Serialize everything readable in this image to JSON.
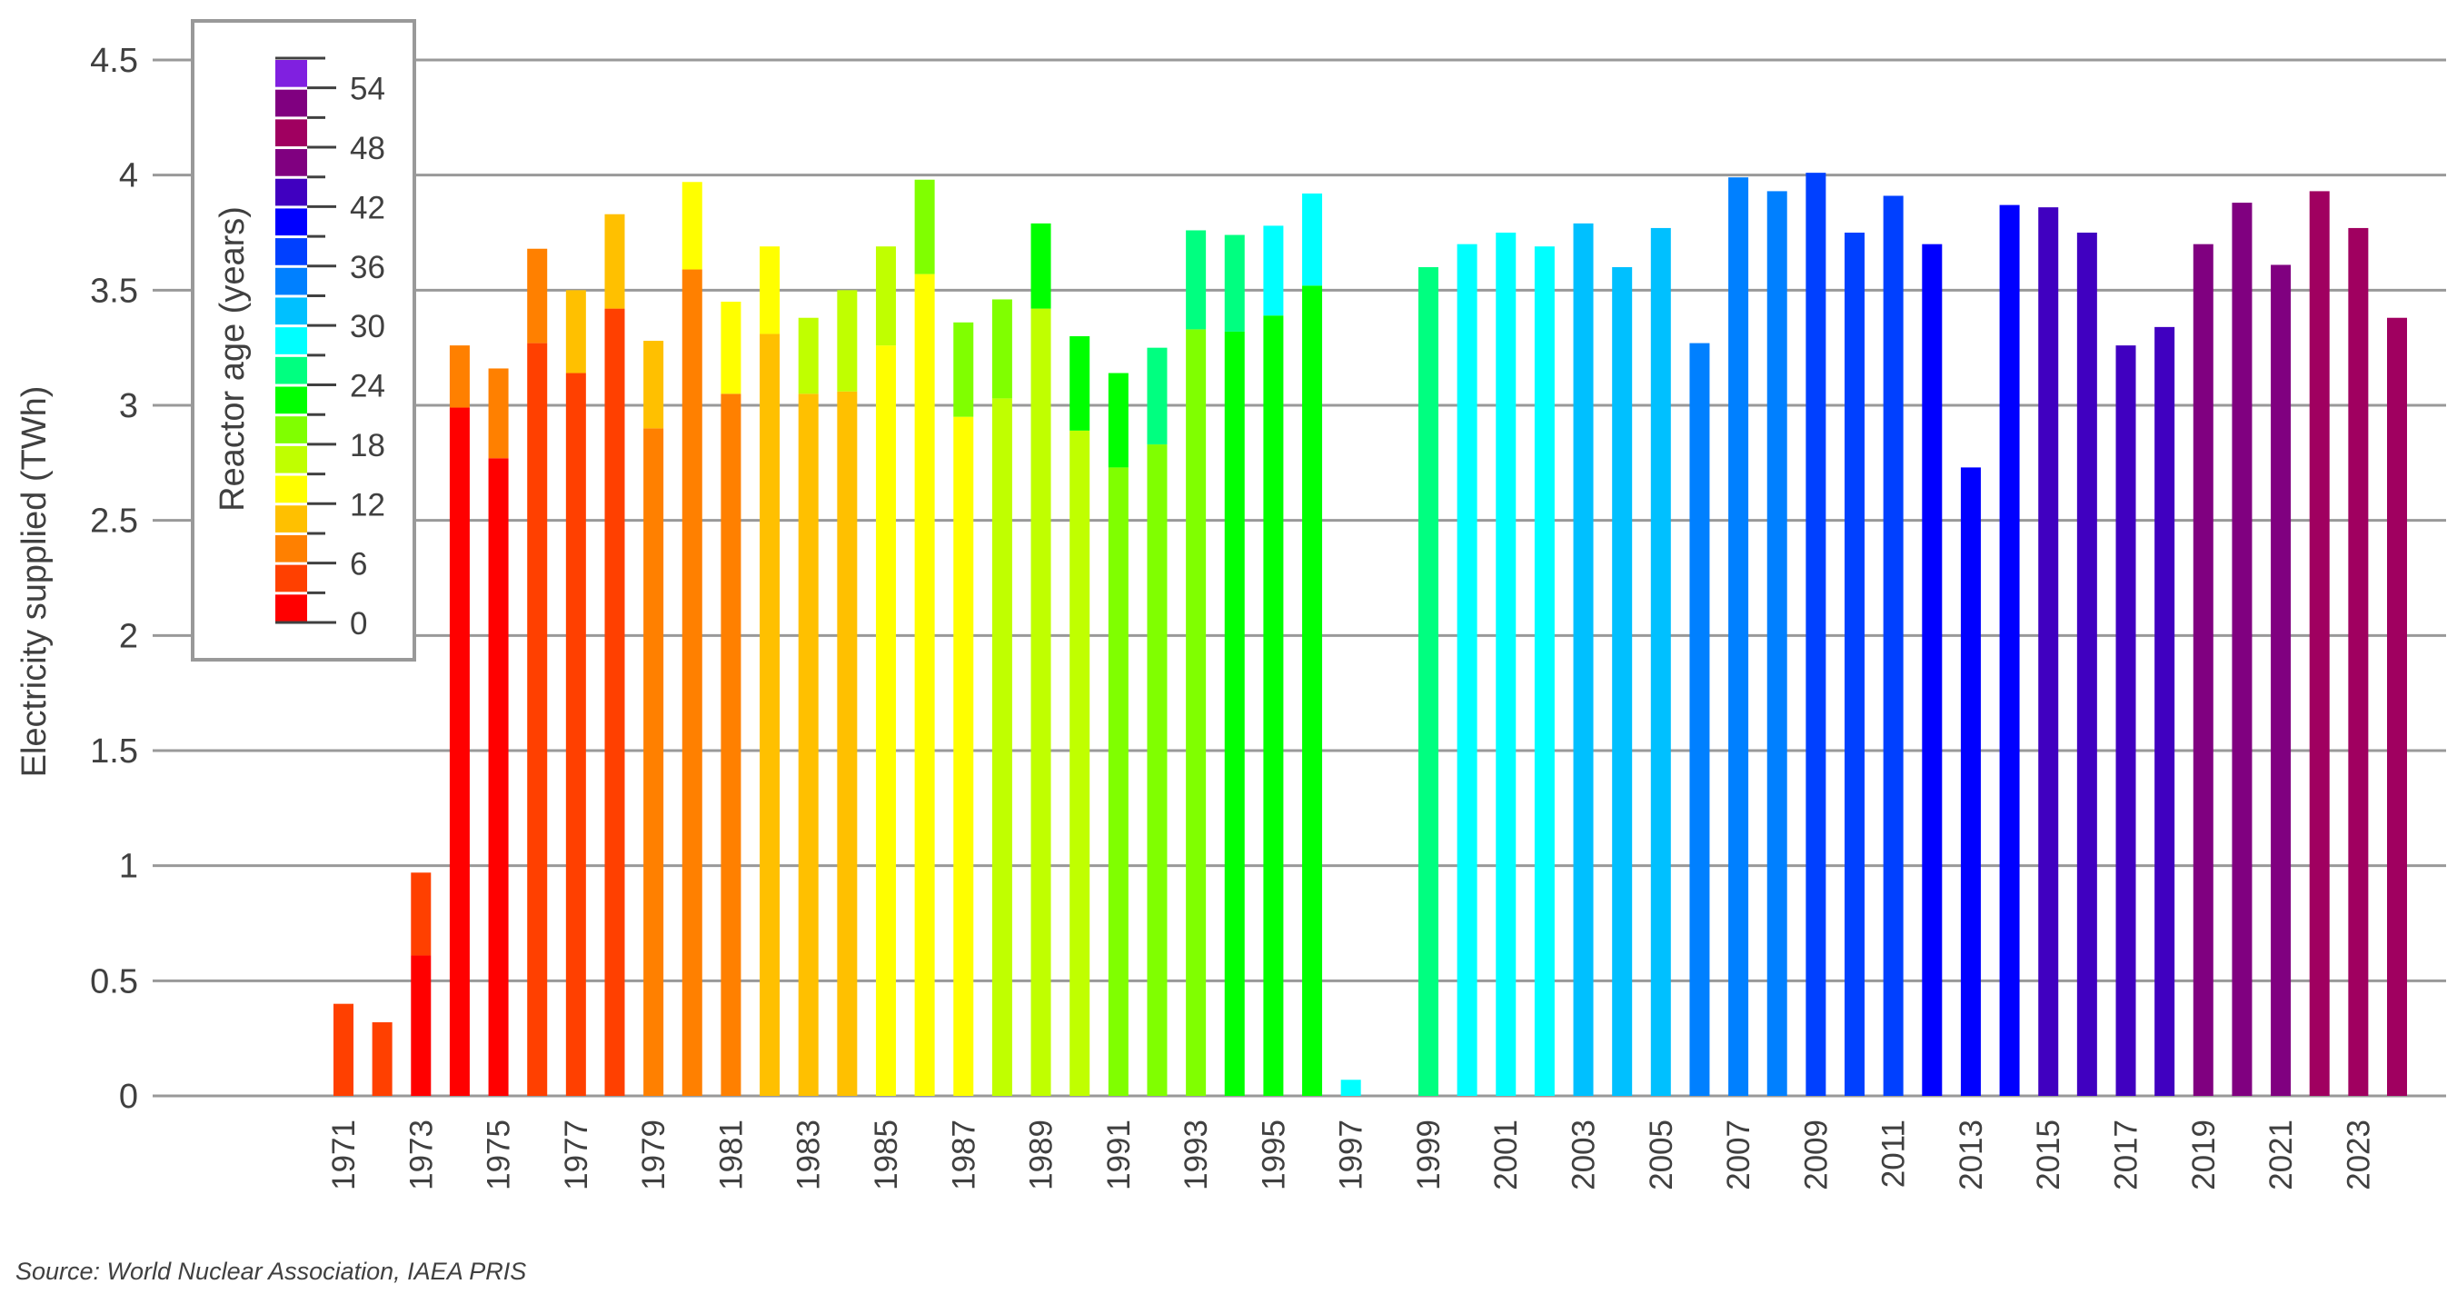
{
  "chart_data": {
    "type": "bar",
    "stacked": true,
    "ylabel": "Electricity supplied (TWh)",
    "ylim": [
      0,
      4.5
    ],
    "yticks": [
      "0",
      "0.5",
      "1",
      "1.5",
      "2",
      "2.5",
      "3",
      "3.5",
      "4",
      "4.5"
    ],
    "grid": true,
    "source": "Source: World Nuclear Association, IAEA PRIS",
    "legend": {
      "title": "Reactor age (years)",
      "placement": "top-left",
      "range": [
        0,
        57
      ],
      "tick_labels": [
        "0",
        "6",
        "12",
        "18",
        "24",
        "30",
        "36",
        "42",
        "48",
        "54"
      ],
      "bin_colors": [
        "#ff0000",
        "#ff4000",
        "#ff8000",
        "#ffc000",
        "#ffff00",
        "#c0ff00",
        "#80ff00",
        "#00ff00",
        "#00ff80",
        "#00ffff",
        "#00c0ff",
        "#0080ff",
        "#0040ff",
        "#0000ff",
        "#4000c0",
        "#800080",
        "#a00060",
        "#800080",
        "#8020e0"
      ]
    },
    "bars": [
      {
        "year": "1971",
        "segments": [
          {
            "value": 0.4,
            "color": "#ff4000"
          }
        ]
      },
      {
        "year": "1972",
        "segments": [
          {
            "value": 0.32,
            "color": "#ff4000"
          }
        ]
      },
      {
        "year": "1973",
        "segments": [
          {
            "value": 0.61,
            "color": "#ff0000"
          },
          {
            "value": 0.36,
            "color": "#ff4000"
          }
        ]
      },
      {
        "year": "1974",
        "segments": [
          {
            "value": 2.99,
            "color": "#ff0000"
          },
          {
            "value": 0.27,
            "color": "#ff8000"
          }
        ]
      },
      {
        "year": "1975",
        "segments": [
          {
            "value": 2.77,
            "color": "#ff0000"
          },
          {
            "value": 0.39,
            "color": "#ff8000"
          }
        ]
      },
      {
        "year": "1976",
        "segments": [
          {
            "value": 3.27,
            "color": "#ff4000"
          },
          {
            "value": 0.41,
            "color": "#ff8000"
          }
        ]
      },
      {
        "year": "1977",
        "segments": [
          {
            "value": 3.14,
            "color": "#ff4000"
          },
          {
            "value": 0.36,
            "color": "#ffc000"
          }
        ]
      },
      {
        "year": "1978",
        "segments": [
          {
            "value": 3.42,
            "color": "#ff4000"
          },
          {
            "value": 0.41,
            "color": "#ffc000"
          }
        ]
      },
      {
        "year": "1979",
        "segments": [
          {
            "value": 2.9,
            "color": "#ff8000"
          },
          {
            "value": 0.38,
            "color": "#ffc000"
          }
        ]
      },
      {
        "year": "1980",
        "segments": [
          {
            "value": 3.59,
            "color": "#ff8000"
          },
          {
            "value": 0.38,
            "color": "#ffff00"
          }
        ]
      },
      {
        "year": "1981",
        "segments": [
          {
            "value": 3.05,
            "color": "#ff8000"
          },
          {
            "value": 0.4,
            "color": "#ffff00"
          }
        ]
      },
      {
        "year": "1982",
        "segments": [
          {
            "value": 3.31,
            "color": "#ffc000"
          },
          {
            "value": 0.38,
            "color": "#ffff00"
          }
        ]
      },
      {
        "year": "1983",
        "segments": [
          {
            "value": 3.05,
            "color": "#ffc000"
          },
          {
            "value": 0.33,
            "color": "#c0ff00"
          }
        ]
      },
      {
        "year": "1984",
        "segments": [
          {
            "value": 3.06,
            "color": "#ffc000"
          },
          {
            "value": 0.44,
            "color": "#c0ff00"
          }
        ]
      },
      {
        "year": "1985",
        "segments": [
          {
            "value": 3.26,
            "color": "#ffff00"
          },
          {
            "value": 0.43,
            "color": "#c0ff00"
          }
        ]
      },
      {
        "year": "1986",
        "segments": [
          {
            "value": 3.57,
            "color": "#ffff00"
          },
          {
            "value": 0.41,
            "color": "#80ff00"
          }
        ]
      },
      {
        "year": "1987",
        "segments": [
          {
            "value": 2.95,
            "color": "#ffff00"
          },
          {
            "value": 0.41,
            "color": "#80ff00"
          }
        ]
      },
      {
        "year": "1988",
        "segments": [
          {
            "value": 3.03,
            "color": "#c0ff00"
          },
          {
            "value": 0.43,
            "color": "#80ff00"
          }
        ]
      },
      {
        "year": "1989",
        "segments": [
          {
            "value": 3.42,
            "color": "#c0ff00"
          },
          {
            "value": 0.37,
            "color": "#00ff00"
          }
        ]
      },
      {
        "year": "1990",
        "segments": [
          {
            "value": 2.89,
            "color": "#c0ff00"
          },
          {
            "value": 0.41,
            "color": "#00ff00"
          }
        ]
      },
      {
        "year": "1991",
        "segments": [
          {
            "value": 2.73,
            "color": "#80ff00"
          },
          {
            "value": 0.41,
            "color": "#00ff00"
          }
        ]
      },
      {
        "year": "1992",
        "segments": [
          {
            "value": 2.83,
            "color": "#80ff00"
          },
          {
            "value": 0.42,
            "color": "#00ff80"
          }
        ]
      },
      {
        "year": "1993",
        "segments": [
          {
            "value": 3.33,
            "color": "#80ff00"
          },
          {
            "value": 0.43,
            "color": "#00ff80"
          }
        ]
      },
      {
        "year": "1994",
        "segments": [
          {
            "value": 3.32,
            "color": "#00ff00"
          },
          {
            "value": 0.42,
            "color": "#00ff80"
          }
        ]
      },
      {
        "year": "1995",
        "segments": [
          {
            "value": 3.39,
            "color": "#00ff00"
          },
          {
            "value": 0.39,
            "color": "#00ffff"
          }
        ]
      },
      {
        "year": "1996",
        "segments": [
          {
            "value": 3.52,
            "color": "#00ff00"
          },
          {
            "value": 0.4,
            "color": "#00ffff"
          }
        ]
      },
      {
        "year": "1997",
        "segments": [
          {
            "value": 0.07,
            "color": "#00ffff"
          }
        ]
      },
      {
        "year": "1998",
        "segments": []
      },
      {
        "year": "1999",
        "segments": [
          {
            "value": 3.6,
            "color": "#00ff80"
          }
        ]
      },
      {
        "year": "2000",
        "segments": [
          {
            "value": 3.7,
            "color": "#00ffff"
          }
        ]
      },
      {
        "year": "2001",
        "segments": [
          {
            "value": 3.75,
            "color": "#00ffff"
          }
        ]
      },
      {
        "year": "2002",
        "segments": [
          {
            "value": 3.69,
            "color": "#00ffff"
          }
        ]
      },
      {
        "year": "2003",
        "segments": [
          {
            "value": 3.79,
            "color": "#00c0ff"
          }
        ]
      },
      {
        "year": "2004",
        "segments": [
          {
            "value": 3.6,
            "color": "#00c0ff"
          }
        ]
      },
      {
        "year": "2005",
        "segments": [
          {
            "value": 3.77,
            "color": "#00c0ff"
          }
        ]
      },
      {
        "year": "2006",
        "segments": [
          {
            "value": 3.27,
            "color": "#0080ff"
          }
        ]
      },
      {
        "year": "2007",
        "segments": [
          {
            "value": 3.99,
            "color": "#0080ff"
          }
        ]
      },
      {
        "year": "2008",
        "segments": [
          {
            "value": 3.93,
            "color": "#0080ff"
          }
        ]
      },
      {
        "year": "2009",
        "segments": [
          {
            "value": 4.01,
            "color": "#0040ff"
          }
        ]
      },
      {
        "year": "2010",
        "segments": [
          {
            "value": 3.75,
            "color": "#0040ff"
          }
        ]
      },
      {
        "year": "2011",
        "segments": [
          {
            "value": 3.91,
            "color": "#0040ff"
          }
        ]
      },
      {
        "year": "2012",
        "segments": [
          {
            "value": 3.7,
            "color": "#0000ff"
          }
        ]
      },
      {
        "year": "2013",
        "segments": [
          {
            "value": 2.73,
            "color": "#0000ff"
          }
        ]
      },
      {
        "year": "2014",
        "segments": [
          {
            "value": 3.87,
            "color": "#0000ff"
          }
        ]
      },
      {
        "year": "2015",
        "segments": [
          {
            "value": 3.86,
            "color": "#4000c0"
          }
        ]
      },
      {
        "year": "2016",
        "segments": [
          {
            "value": 3.75,
            "color": "#4000c0"
          }
        ]
      },
      {
        "year": "2017",
        "segments": [
          {
            "value": 3.26,
            "color": "#4000c0"
          }
        ]
      },
      {
        "year": "2018",
        "segments": [
          {
            "value": 3.34,
            "color": "#4000c0"
          }
        ]
      },
      {
        "year": "2019",
        "segments": [
          {
            "value": 3.7,
            "color": "#800080"
          }
        ]
      },
      {
        "year": "2020",
        "segments": [
          {
            "value": 3.88,
            "color": "#800080"
          }
        ]
      },
      {
        "year": "2021",
        "segments": [
          {
            "value": 3.61,
            "color": "#800080"
          }
        ]
      },
      {
        "year": "2022",
        "segments": [
          {
            "value": 3.93,
            "color": "#a00060"
          }
        ]
      },
      {
        "year": "2023",
        "segments": [
          {
            "value": 3.77,
            "color": "#a00060"
          }
        ]
      },
      {
        "year": "2024",
        "segments": [
          {
            "value": 3.38,
            "color": "#a00060"
          }
        ]
      }
    ],
    "xtick_labels": [
      "1971",
      "1973",
      "1975",
      "1977",
      "1979",
      "1981",
      "1983",
      "1985",
      "1987",
      "1989",
      "1991",
      "1993",
      "1995",
      "1997",
      "1999",
      "2001",
      "2003",
      "2005",
      "2007",
      "2009",
      "2011",
      "2013",
      "2015",
      "2017",
      "2019",
      "2021",
      "2023"
    ]
  }
}
